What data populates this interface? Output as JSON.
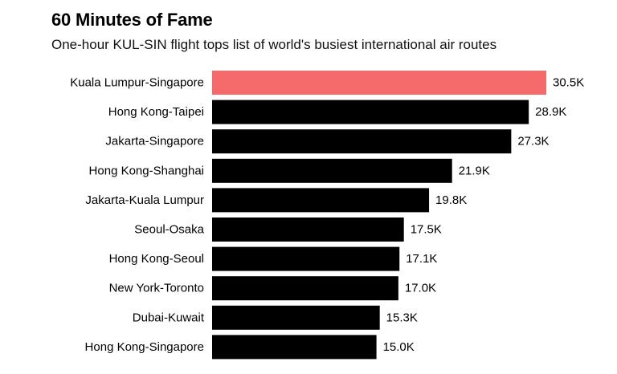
{
  "chart_data": {
    "type": "bar",
    "orientation": "horizontal",
    "title": "60 Minutes of Fame",
    "subtitle": "One-hour KUL-SIN flight tops list of world's busiest international air routes",
    "categories": [
      "Kuala Lumpur-Singapore",
      "Hong Kong-Taipei",
      "Jakarta-Singapore",
      "Hong Kong-Shanghai",
      "Jakarta-Kuala Lumpur",
      "Seoul-Osaka",
      "Hong Kong-Seoul",
      "New York-Toronto",
      "Dubai-Kuwait",
      "Hong Kong-Singapore"
    ],
    "values": [
      30.5,
      28.9,
      27.3,
      21.9,
      19.8,
      17.5,
      17.1,
      17.0,
      15.3,
      15.0
    ],
    "value_labels": [
      "30.5K",
      "28.9K",
      "27.3K",
      "21.9K",
      "19.8K",
      "17.5K",
      "17.1K",
      "17.0K",
      "15.3K",
      "15.0K"
    ],
    "highlight_index": 0,
    "colors": {
      "highlight": "#f56b6b",
      "default": "#000000"
    },
    "xlim": [
      0,
      30.5
    ],
    "grid": false,
    "legend": "none"
  }
}
